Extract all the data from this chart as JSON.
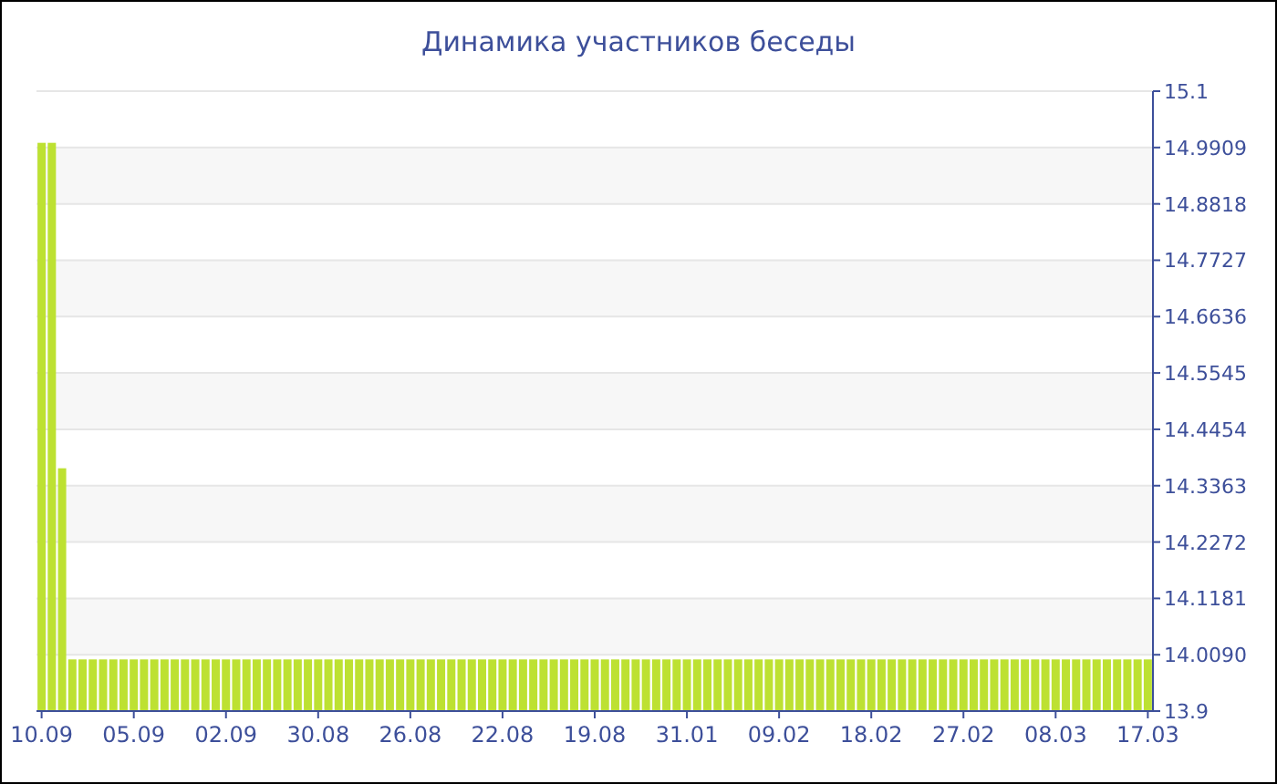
{
  "chart_data": {
    "type": "bar",
    "title": "Динамика участников беседы",
    "categories": [
      "10.09",
      null,
      null,
      null,
      null,
      null,
      null,
      null,
      null,
      "05.09",
      null,
      null,
      null,
      null,
      null,
      null,
      null,
      null,
      "02.09",
      null,
      null,
      null,
      null,
      null,
      null,
      null,
      null,
      "30.08",
      null,
      null,
      null,
      null,
      null,
      null,
      null,
      null,
      "26.08",
      null,
      null,
      null,
      null,
      null,
      null,
      null,
      null,
      "22.08",
      null,
      null,
      null,
      null,
      null,
      null,
      null,
      null,
      "19.08",
      null,
      null,
      null,
      null,
      null,
      null,
      null,
      null,
      "31.01",
      null,
      null,
      null,
      null,
      null,
      null,
      null,
      null,
      "09.02",
      null,
      null,
      null,
      null,
      null,
      null,
      null,
      null,
      "18.02",
      null,
      null,
      null,
      null,
      null,
      null,
      null,
      null,
      "27.02",
      null,
      null,
      null,
      null,
      null,
      null,
      null,
      null,
      "08.03",
      null,
      null,
      null,
      null,
      null,
      null,
      null,
      null,
      "17.03"
    ],
    "values": [
      15,
      15,
      14.37,
      14,
      14,
      14,
      14,
      14,
      14,
      14,
      14,
      14,
      14,
      14,
      14,
      14,
      14,
      14,
      14,
      14,
      14,
      14,
      14,
      14,
      14,
      14,
      14,
      14,
      14,
      14,
      14,
      14,
      14,
      14,
      14,
      14,
      14,
      14,
      14,
      14,
      14,
      14,
      14,
      14,
      14,
      14,
      14,
      14,
      14,
      14,
      14,
      14,
      14,
      14,
      14,
      14,
      14,
      14,
      14,
      14,
      14,
      14,
      14,
      14,
      14,
      14,
      14,
      14,
      14,
      14,
      14,
      14,
      14,
      14,
      14,
      14,
      14,
      14,
      14,
      14,
      14,
      14,
      14,
      14,
      14,
      14,
      14,
      14,
      14,
      14,
      14,
      14,
      14,
      14,
      14,
      14,
      14,
      14,
      14,
      14,
      14,
      14,
      14,
      14,
      14,
      14,
      14,
      14,
      14
    ],
    "color": "#bde132",
    "ylim": [
      13.9,
      15.1
    ],
    "yticks": [
      13.9,
      {
        "value": 14.009,
        "label": "14.0090"
      },
      {
        "value": 14.1181,
        "label": "14.1181"
      },
      {
        "value": 14.2272,
        "label": "14.2272"
      },
      {
        "value": 14.3363,
        "label": "14.3363"
      },
      {
        "value": 14.4454,
        "label": "14.4454"
      },
      {
        "value": 14.5545,
        "label": "14.5545"
      },
      {
        "value": 14.6636,
        "label": "14.6636"
      },
      {
        "value": 14.7727,
        "label": "14.7727"
      },
      {
        "value": 14.8818,
        "label": "14.8818"
      },
      {
        "value": 14.9909,
        "label": "14.9909"
      },
      15.1
    ],
    "grid": "y"
  }
}
